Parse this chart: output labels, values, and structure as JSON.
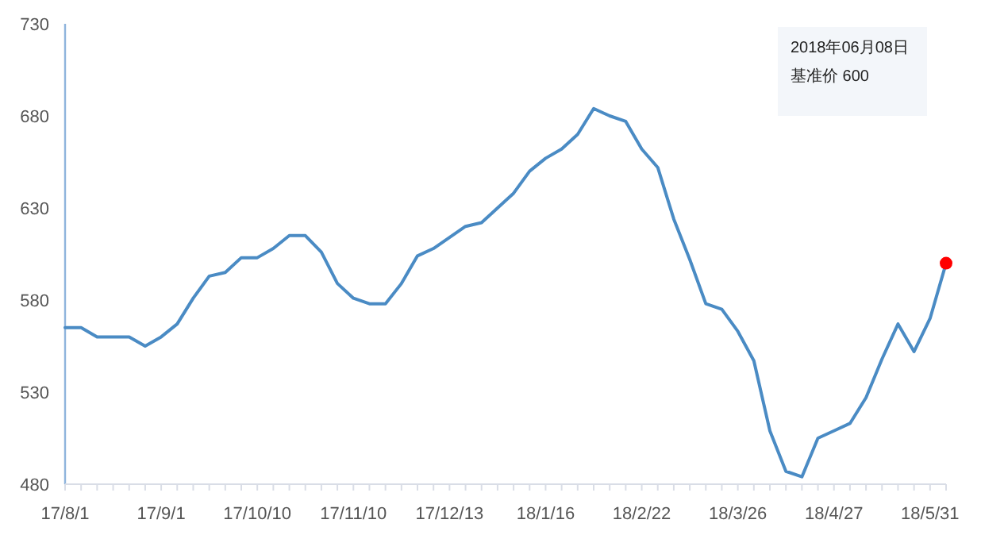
{
  "chart_data": {
    "type": "line",
    "categories": [
      "17/8/1",
      null,
      null,
      null,
      null,
      null,
      "17/9/1",
      null,
      null,
      null,
      null,
      null,
      "17/10/10",
      null,
      null,
      null,
      null,
      null,
      "17/11/10",
      null,
      null,
      null,
      null,
      null,
      "17/12/13",
      null,
      null,
      null,
      null,
      null,
      "18/1/16",
      null,
      null,
      null,
      null,
      null,
      "18/2/22",
      null,
      null,
      null,
      null,
      null,
      "18/3/26",
      null,
      null,
      null,
      null,
      null,
      "18/4/27",
      null,
      null,
      null,
      null,
      null,
      "18/5/31",
      null
    ],
    "series": [
      {
        "color": "#4a8bc4",
        "marker": "none",
        "values": [
          565,
          565,
          560,
          560,
          560,
          555,
          560,
          567,
          581,
          593,
          595,
          603,
          603,
          608,
          615,
          615,
          606,
          589,
          581,
          578,
          578,
          589,
          604,
          608,
          614,
          620,
          622,
          630,
          638,
          650,
          657,
          662,
          670,
          684,
          680,
          677,
          662,
          652,
          624,
          602,
          578,
          575,
          563,
          547,
          509,
          487,
          484,
          505,
          509,
          513,
          527,
          548,
          567,
          552,
          570,
          600
        ]
      },
      {
        "type": "scatter",
        "color": "#ff0000",
        "marker": "circle",
        "values": [
          null,
          null,
          null,
          null,
          null,
          null,
          null,
          null,
          null,
          null,
          null,
          null,
          null,
          null,
          null,
          null,
          null,
          null,
          null,
          null,
          null,
          null,
          null,
          null,
          null,
          null,
          null,
          null,
          null,
          null,
          null,
          null,
          null,
          null,
          null,
          null,
          null,
          null,
          null,
          null,
          null,
          null,
          null,
          null,
          null,
          null,
          null,
          null,
          null,
          null,
          null,
          null,
          null,
          null,
          null,
          600
        ]
      }
    ],
    "ylim": [
      480,
      730
    ],
    "yticks": [
      480,
      530,
      580,
      630,
      680,
      730
    ],
    "grid": false,
    "annotations": [
      "2018年06月08日",
      "基准价 600"
    ]
  }
}
